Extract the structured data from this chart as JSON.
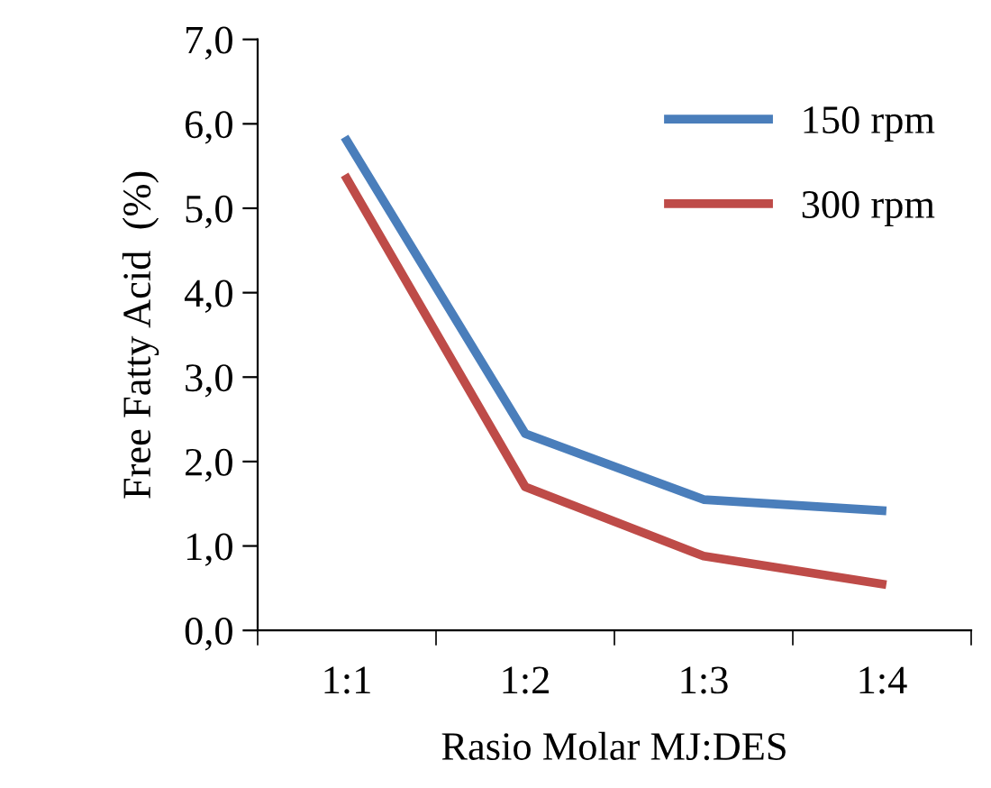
{
  "chart_data": {
    "type": "line",
    "xlabel": "Rasio Molar MJ:DES",
    "ylabel": "Free Fatty Acid  (%)",
    "categories": [
      "1:1",
      "1:2",
      "1:3",
      "1:4"
    ],
    "series": [
      {
        "name": "150 rpm",
        "color": "#4a7ebb",
        "values": [
          5.8,
          2.33,
          1.55,
          1.42
        ]
      },
      {
        "name": "300 rpm",
        "color": "#be4b48",
        "values": [
          5.35,
          1.7,
          0.88,
          0.55
        ]
      }
    ],
    "ylim": [
      0,
      7
    ],
    "yticks": [
      {
        "value": 0,
        "label": "0,0"
      },
      {
        "value": 1,
        "label": "1,0"
      },
      {
        "value": 2,
        "label": "2,0"
      },
      {
        "value": 3,
        "label": "3,0"
      },
      {
        "value": 4,
        "label": "4,0"
      },
      {
        "value": 5,
        "label": "5,0"
      },
      {
        "value": 6,
        "label": "6,0"
      },
      {
        "value": 7,
        "label": "7,0"
      }
    ],
    "grid": false,
    "legend": "top right",
    "marker": "none",
    "line_style": "solid"
  }
}
